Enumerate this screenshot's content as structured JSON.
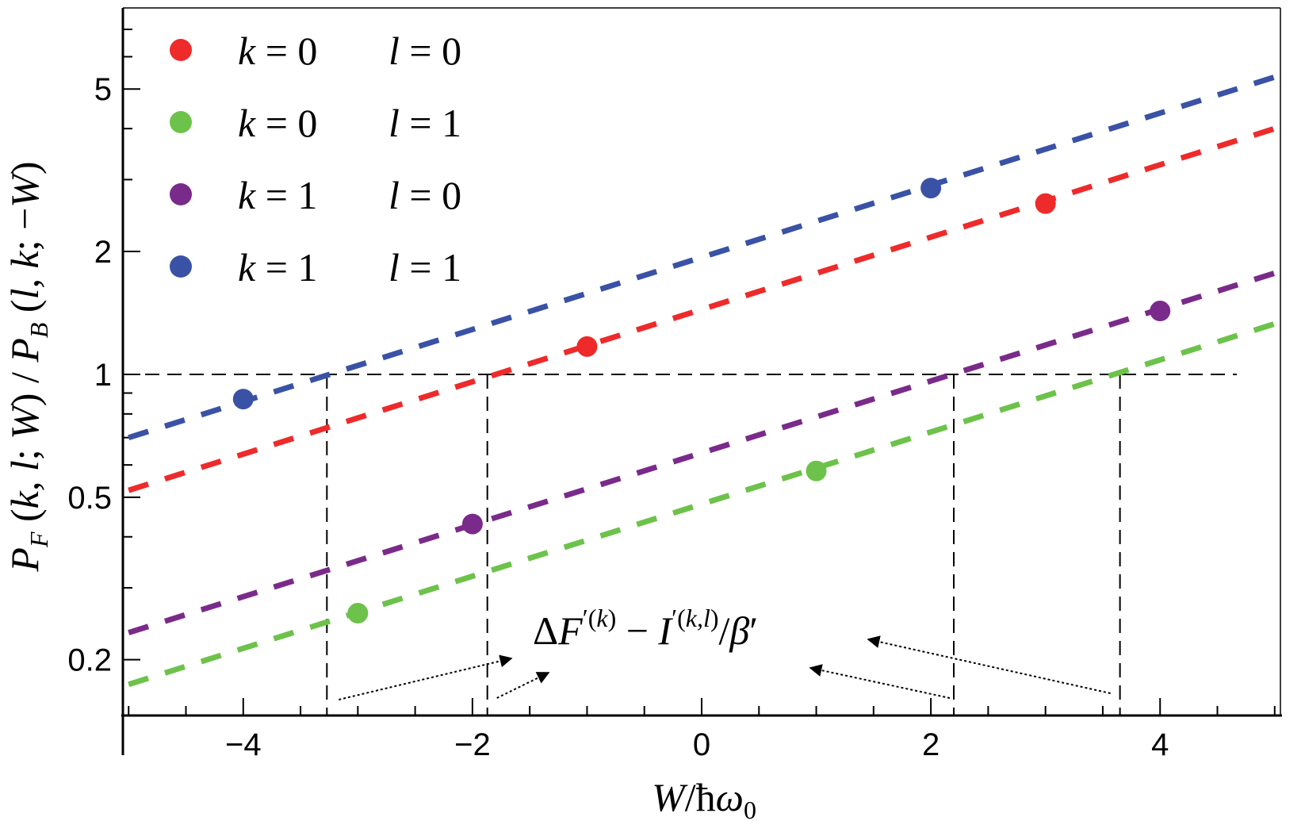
{
  "chart_data": {
    "type": "scatter",
    "xlabel": "W/ħω₀",
    "ylabel": "P_F(k,l;W)/P_B(l,k;−W)",
    "y_scale": "log",
    "xlim": [
      -5.05,
      5.05
    ],
    "ylim": [
      0.146,
      7.9
    ],
    "x_ticks": [
      -4,
      -2,
      0,
      2,
      4
    ],
    "x_tick_labels": [
      "−4",
      "−2",
      "0",
      "2",
      "4"
    ],
    "y_ticks": [
      0.2,
      0.5,
      1,
      2,
      5
    ],
    "y_tick_labels": [
      "0.2",
      "0.5",
      "1",
      "2",
      "5"
    ],
    "grid": false,
    "legend_placement": "top-left",
    "series": [
      {
        "name": "k = 0   l = 0",
        "k": "0",
        "l": "0",
        "color": "#ee2a2a",
        "points": [
          {
            "x": -1,
            "y": 1.17
          },
          {
            "x": 3,
            "y": 2.62
          }
        ],
        "fit_line": {
          "x": [
            -5,
            5
          ],
          "y": [
            0.52,
            4.0
          ]
        }
      },
      {
        "name": "k = 0   l = 1",
        "k": "0",
        "l": "1",
        "color": "#6cc24a",
        "points": [
          {
            "x": -3,
            "y": 0.26
          },
          {
            "x": 1,
            "y": 0.58
          }
        ],
        "fit_line": {
          "x": [
            -5,
            5
          ],
          "y": [
            0.174,
            1.33
          ]
        }
      },
      {
        "name": "k = 1   l = 0",
        "k": "1",
        "l": "0",
        "color": "#7a2a8a",
        "points": [
          {
            "x": -2,
            "y": 0.43
          },
          {
            "x": 4,
            "y": 1.43
          }
        ],
        "fit_line": {
          "x": [
            -5,
            5
          ],
          "y": [
            0.233,
            1.77
          ]
        }
      },
      {
        "name": "k = 1   l = 1",
        "k": "1",
        "l": "1",
        "color": "#3a52a5",
        "points": [
          {
            "x": -4,
            "y": 0.87
          },
          {
            "x": 2,
            "y": 2.86
          }
        ],
        "fit_line": {
          "x": [
            -5,
            5
          ],
          "y": [
            0.7,
            5.35
          ]
        }
      }
    ],
    "reference_line": {
      "y": 1
    },
    "crossing_lines_x": [
      -3.27,
      -1.87,
      2.2,
      3.65
    ],
    "annotation": "ΔF′(k) − I′(k,l)/β′"
  }
}
